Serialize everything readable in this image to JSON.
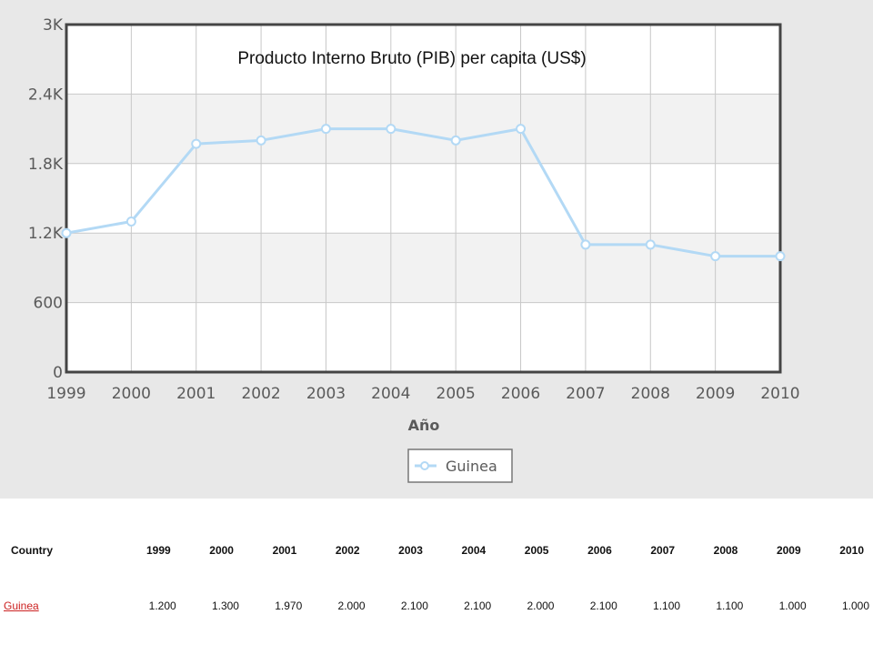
{
  "chart_data": {
    "type": "line",
    "title": "Producto Interno Bruto (PIB) per capita (US$)",
    "xlabel": "Año",
    "ylabel": "",
    "categories": [
      "1999",
      "2000",
      "2001",
      "2002",
      "2003",
      "2004",
      "2005",
      "2006",
      "2007",
      "2008",
      "2009",
      "2010"
    ],
    "series": [
      {
        "name": "Guinea",
        "values": [
          1200,
          1300,
          1970,
          2000,
          2100,
          2100,
          2000,
          2100,
          1100,
          1100,
          1000,
          1000
        ]
      }
    ],
    "ylim": [
      0,
      3000
    ],
    "yticks": [
      0,
      600,
      1200,
      1800,
      2400,
      3000
    ],
    "ytick_labels": [
      "0",
      "600",
      "1.2K",
      "1.8K",
      "2.4K",
      "3K"
    ],
    "grid": true,
    "legend_position": "bottom-center",
    "colors": {
      "line": "#b3d9f5",
      "marker_fill": "#ffffff",
      "marker_stroke": "#b3d9f5",
      "plot_bg_a": "#ffffff",
      "plot_bg_b": "#f2f2f2",
      "grid": "#c8c8c8",
      "frame": "#444444",
      "panel_bg": "#e8e8e8"
    }
  },
  "table": {
    "headers": [
      "Country",
      "1999",
      "2000",
      "2001",
      "2002",
      "2003",
      "2004",
      "2005",
      "2006",
      "2007",
      "2008",
      "2009",
      "2010"
    ],
    "rows": [
      {
        "country": "Guinea",
        "values": [
          "1.200",
          "1.300",
          "1.970",
          "2.000",
          "2.100",
          "2.100",
          "2.000",
          "2.100",
          "1.100",
          "1.100",
          "1.000",
          "1.000"
        ]
      }
    ]
  }
}
